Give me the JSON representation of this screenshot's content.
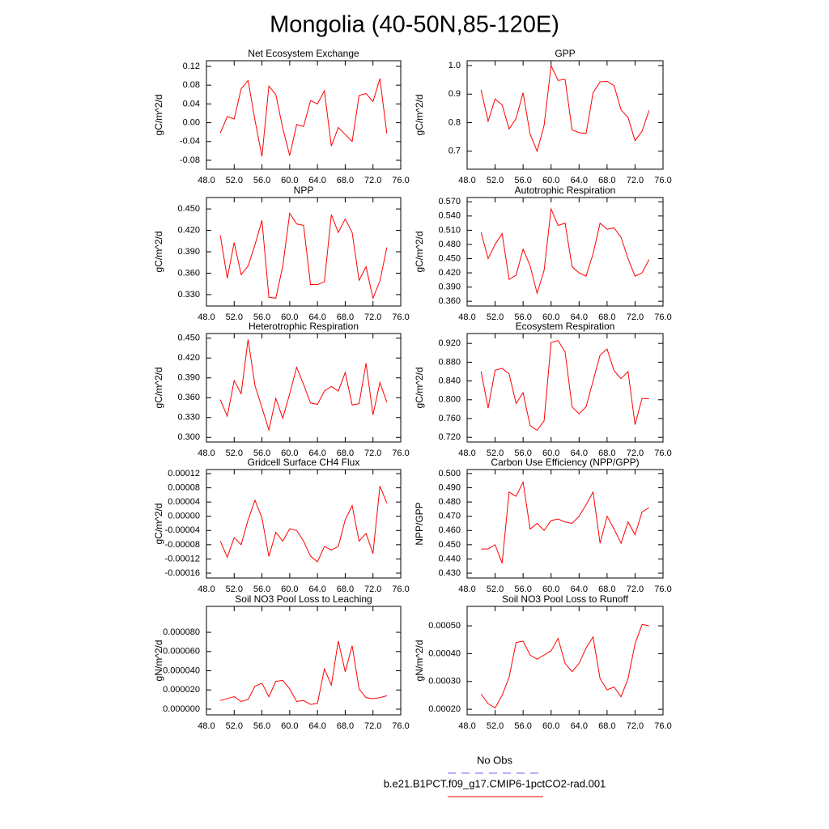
{
  "title": "Mongolia (40-50N,85-120E)",
  "legend": [
    {
      "name": "No Obs",
      "color": "#6666ff",
      "dash": true
    },
    {
      "name": "b.e21.B1PCT.f09_g17.CMIP6-1pctCO2-rad.001",
      "color": "#ff0000",
      "dash": false
    }
  ],
  "chart_data": [
    {
      "type": "line",
      "title": "Net Ecosystem Exchange",
      "y_label": "gC/m^2/d",
      "color": "#ff0000",
      "x": [
        50,
        51,
        52,
        53,
        54,
        55,
        56,
        57,
        58,
        59,
        60,
        61,
        62,
        63,
        64,
        65,
        66,
        67,
        68,
        69,
        70,
        71,
        72,
        73,
        74
      ],
      "values": [
        -0.022,
        0.013,
        0.008,
        0.072,
        0.09,
        0.005,
        -0.072,
        0.078,
        0.06,
        -0.012,
        -0.07,
        -0.004,
        -0.008,
        0.047,
        0.04,
        0.068,
        -0.05,
        -0.01,
        -0.025,
        -0.04,
        0.058,
        0.062,
        0.045,
        0.094,
        -0.023
      ],
      "xlim": [
        48,
        76
      ],
      "xticks": [
        {
          "value": 48,
          "label": "48.0"
        },
        {
          "value": 52,
          "label": "52.0"
        },
        {
          "value": 56,
          "label": "56.0"
        },
        {
          "value": 60,
          "label": "60.0"
        },
        {
          "value": 64,
          "label": "64.0"
        },
        {
          "value": 68,
          "label": "68.0"
        },
        {
          "value": 72,
          "label": "72.0"
        },
        {
          "value": 76,
          "label": "76.0"
        }
      ],
      "ylim": [
        -0.099,
        0.132
      ],
      "yticks": [
        0.12,
        0.08,
        0.04,
        {
          "value": 0,
          "label": "0.00"
        },
        -0.04,
        -0.08
      ]
    },
    {
      "type": "line",
      "title": "GPP",
      "y_label": "gC/m^2/d",
      "color": "#ff0000",
      "x": [
        50,
        51,
        52,
        53,
        54,
        55,
        56,
        57,
        58,
        59,
        60,
        61,
        62,
        63,
        64,
        65,
        66,
        67,
        68,
        69,
        70,
        71,
        72,
        73,
        74
      ],
      "values": [
        0.915,
        0.805,
        0.883,
        0.862,
        0.778,
        0.815,
        0.905,
        0.76,
        0.7,
        0.79,
        1.0,
        0.948,
        0.952,
        0.775,
        0.765,
        0.762,
        0.905,
        0.943,
        0.945,
        0.93,
        0.845,
        0.818,
        0.737,
        0.77,
        0.843
      ],
      "xlim": [
        48,
        76
      ],
      "xticks": [
        {
          "value": 48,
          "label": "48.0"
        },
        {
          "value": 52,
          "label": "52.0"
        },
        {
          "value": 56,
          "label": "56.0"
        },
        {
          "value": 60,
          "label": "60.0"
        },
        {
          "value": 64,
          "label": "64.0"
        },
        {
          "value": 68,
          "label": "68.0"
        },
        {
          "value": 72,
          "label": "72.0"
        },
        {
          "value": 76,
          "label": "76.0"
        }
      ],
      "ylim": [
        0.637,
        1.017
      ],
      "yticks": [
        {
          "value": 1,
          "label": "1.0"
        },
        0.9,
        0.8,
        0.7
      ]
    },
    {
      "type": "line",
      "title": "NPP",
      "y_label": "gC/m^2/d",
      "color": "#ff0000",
      "x": [
        50,
        51,
        52,
        53,
        54,
        55,
        56,
        57,
        58,
        59,
        60,
        61,
        62,
        63,
        64,
        65,
        66,
        67,
        68,
        69,
        70,
        71,
        72,
        73,
        74
      ],
      "values": [
        0.413,
        0.353,
        0.403,
        0.358,
        0.37,
        0.4,
        0.434,
        0.326,
        0.325,
        0.37,
        0.444,
        0.429,
        0.427,
        0.344,
        0.344,
        0.348,
        0.442,
        0.417,
        0.436,
        0.417,
        0.35,
        0.369,
        0.325,
        0.349,
        0.396
      ],
      "xlim": [
        48,
        76
      ],
      "xticks": [
        {
          "value": 48,
          "label": "48.0"
        },
        {
          "value": 52,
          "label": "52.0"
        },
        {
          "value": 56,
          "label": "56.0"
        },
        {
          "value": 60,
          "label": "60.0"
        },
        {
          "value": 64,
          "label": "64.0"
        },
        {
          "value": 68,
          "label": "68.0"
        },
        {
          "value": 72,
          "label": "72.0"
        },
        {
          "value": 76,
          "label": "76.0"
        }
      ],
      "ylim": [
        0.314,
        0.466
      ],
      "yticks": [
        {
          "value": 0.45,
          "label": "0.450"
        },
        {
          "value": 0.42,
          "label": "0.420"
        },
        {
          "value": 0.39,
          "label": "0.390"
        },
        {
          "value": 0.36,
          "label": "0.360"
        },
        {
          "value": 0.33,
          "label": "0.330"
        }
      ]
    },
    {
      "type": "line",
      "title": "Autotrophic Respiration",
      "y_label": "gC/m^2/d",
      "color": "#ff0000",
      "x": [
        50,
        51,
        52,
        53,
        54,
        55,
        56,
        57,
        58,
        59,
        60,
        61,
        62,
        63,
        64,
        65,
        66,
        67,
        68,
        69,
        70,
        71,
        72,
        73,
        74
      ],
      "values": [
        0.505,
        0.45,
        0.48,
        0.503,
        0.406,
        0.415,
        0.47,
        0.435,
        0.377,
        0.425,
        0.555,
        0.52,
        0.525,
        0.433,
        0.42,
        0.413,
        0.46,
        0.525,
        0.512,
        0.515,
        0.495,
        0.45,
        0.413,
        0.42,
        0.448
      ],
      "xlim": [
        48,
        76
      ],
      "xticks": [
        {
          "value": 48,
          "label": "48.0"
        },
        {
          "value": 52,
          "label": "52.0"
        },
        {
          "value": 56,
          "label": "56.0"
        },
        {
          "value": 60,
          "label": "60.0"
        },
        {
          "value": 64,
          "label": "64.0"
        },
        {
          "value": 68,
          "label": "68.0"
        },
        {
          "value": 72,
          "label": "72.0"
        },
        {
          "value": 76,
          "label": "76.0"
        }
      ],
      "ylim": [
        0.35,
        0.579
      ],
      "yticks": [
        {
          "value": 0.57,
          "label": "0.570"
        },
        {
          "value": 0.54,
          "label": "0.540"
        },
        {
          "value": 0.51,
          "label": "0.510"
        },
        {
          "value": 0.48,
          "label": "0.480"
        },
        {
          "value": 0.45,
          "label": "0.450"
        },
        {
          "value": 0.42,
          "label": "0.420"
        },
        {
          "value": 0.39,
          "label": "0.390"
        },
        {
          "value": 0.36,
          "label": "0.360"
        }
      ]
    },
    {
      "type": "line",
      "title": "Heterotrophic Respiration",
      "y_label": "gC/m^2/d",
      "color": "#ff0000",
      "x": [
        50,
        51,
        52,
        53,
        54,
        55,
        56,
        57,
        58,
        59,
        60,
        61,
        62,
        63,
        64,
        65,
        66,
        67,
        68,
        69,
        70,
        71,
        72,
        73,
        74
      ],
      "values": [
        0.357,
        0.332,
        0.386,
        0.366,
        0.448,
        0.378,
        0.345,
        0.311,
        0.359,
        0.329,
        0.366,
        0.406,
        0.38,
        0.352,
        0.35,
        0.37,
        0.377,
        0.37,
        0.398,
        0.349,
        0.351,
        0.412,
        0.334,
        0.383,
        0.353
      ],
      "xlim": [
        48,
        76
      ],
      "xticks": [
        {
          "value": 48,
          "label": "48.0"
        },
        {
          "value": 52,
          "label": "52.0"
        },
        {
          "value": 56,
          "label": "56.0"
        },
        {
          "value": 60,
          "label": "60.0"
        },
        {
          "value": 64,
          "label": "64.0"
        },
        {
          "value": 68,
          "label": "68.0"
        },
        {
          "value": 72,
          "label": "72.0"
        },
        {
          "value": 76,
          "label": "76.0"
        }
      ],
      "ylim": [
        0.293,
        0.457
      ],
      "yticks": [
        {
          "value": 0.45,
          "label": "0.450"
        },
        {
          "value": 0.42,
          "label": "0.420"
        },
        {
          "value": 0.39,
          "label": "0.390"
        },
        {
          "value": 0.36,
          "label": "0.360"
        },
        {
          "value": 0.33,
          "label": "0.330"
        },
        {
          "value": 0.3,
          "label": "0.300"
        }
      ]
    },
    {
      "type": "line",
      "title": "Ecosystem Respiration",
      "y_label": "gC/m^2/d",
      "color": "#ff0000",
      "x": [
        50,
        51,
        52,
        53,
        54,
        55,
        56,
        57,
        58,
        59,
        60,
        61,
        62,
        63,
        64,
        65,
        66,
        67,
        68,
        69,
        70,
        71,
        72,
        73,
        74
      ],
      "values": [
        0.86,
        0.782,
        0.863,
        0.867,
        0.855,
        0.792,
        0.815,
        0.745,
        0.735,
        0.755,
        0.922,
        0.926,
        0.902,
        0.785,
        0.77,
        0.785,
        0.84,
        0.895,
        0.908,
        0.862,
        0.845,
        0.86,
        0.747,
        0.803,
        0.802
      ],
      "xlim": [
        48,
        76
      ],
      "xticks": [
        {
          "value": 48,
          "label": "48.0"
        },
        {
          "value": 52,
          "label": "52.0"
        },
        {
          "value": 56,
          "label": "56.0"
        },
        {
          "value": 60,
          "label": "60.0"
        },
        {
          "value": 64,
          "label": "64.0"
        },
        {
          "value": 68,
          "label": "68.0"
        },
        {
          "value": 72,
          "label": "72.0"
        },
        {
          "value": 76,
          "label": "76.0"
        }
      ],
      "ylim": [
        0.71,
        0.941
      ],
      "yticks": [
        {
          "value": 0.92,
          "label": "0.920"
        },
        {
          "value": 0.88,
          "label": "0.880"
        },
        {
          "value": 0.84,
          "label": "0.840"
        },
        {
          "value": 0.8,
          "label": "0.800"
        },
        {
          "value": 0.76,
          "label": "0.760"
        },
        {
          "value": 0.72,
          "label": "0.720"
        }
      ]
    },
    {
      "type": "line",
      "title": "Gridcell Surface CH4 Flux",
      "y_label": "gC/m^2/d",
      "color": "#ff0000",
      "x": [
        50,
        51,
        52,
        53,
        54,
        55,
        56,
        57,
        58,
        59,
        60,
        61,
        62,
        63,
        64,
        65,
        66,
        67,
        68,
        69,
        70,
        71,
        72,
        73,
        74
      ],
      "values": [
        -7e-05,
        -0.000115,
        -6e-05,
        -8e-05,
        -1e-05,
        4.5e-05,
        -5e-06,
        -0.000113,
        -4.5e-05,
        -7e-05,
        -3.5e-05,
        -4e-05,
        -7e-05,
        -0.000112,
        -0.000128,
        -8.5e-05,
        -9.5e-05,
        -8.5e-05,
        -1e-05,
        3e-05,
        -7e-05,
        -4.8e-05,
        -0.000105,
        8.5e-05,
        3.7e-05
      ],
      "xlim": [
        48,
        76
      ],
      "xticks": [
        {
          "value": 48,
          "label": "48.0"
        },
        {
          "value": 52,
          "label": "52.0"
        },
        {
          "value": 56,
          "label": "56.0"
        },
        {
          "value": 60,
          "label": "60.0"
        },
        {
          "value": 64,
          "label": "64.0"
        },
        {
          "value": 68,
          "label": "68.0"
        },
        {
          "value": 72,
          "label": "72.0"
        },
        {
          "value": 76,
          "label": "76.0"
        }
      ],
      "ylim": [
        -0.0001737,
        0.0001314
      ],
      "yticks": [
        0.00012,
        8e-05,
        4e-05,
        {
          "value": 0,
          "label": "0.00000"
        },
        -4e-05,
        -8e-05,
        -0.00012,
        -0.00016
      ]
    },
    {
      "type": "line",
      "title": "Carbon Use Efficiency (NPP/GPP)",
      "y_label": "NPP/GPP",
      "color": "#ff0000",
      "x": [
        50,
        51,
        52,
        53,
        54,
        55,
        56,
        57,
        58,
        59,
        60,
        61,
        62,
        63,
        64,
        65,
        66,
        67,
        68,
        69,
        70,
        71,
        72,
        73,
        74
      ],
      "values": [
        0.447,
        0.447,
        0.45,
        0.437,
        0.487,
        0.484,
        0.494,
        0.461,
        0.465,
        0.46,
        0.467,
        0.468,
        0.466,
        0.465,
        0.47,
        0.478,
        0.487,
        0.451,
        0.47,
        0.461,
        0.451,
        0.466,
        0.457,
        0.473,
        0.476
      ],
      "xlim": [
        48,
        76
      ],
      "xticks": [
        {
          "value": 48,
          "label": "48.0"
        },
        {
          "value": 52,
          "label": "52.0"
        },
        {
          "value": 56,
          "label": "56.0"
        },
        {
          "value": 60,
          "label": "60.0"
        },
        {
          "value": 64,
          "label": "64.0"
        },
        {
          "value": 68,
          "label": "68.0"
        },
        {
          "value": 72,
          "label": "72.0"
        },
        {
          "value": 76,
          "label": "76.0"
        }
      ],
      "ylim": [
        0.4266,
        0.5028
      ],
      "yticks": [
        {
          "value": 0.5,
          "label": "0.500"
        },
        {
          "value": 0.49,
          "label": "0.490"
        },
        {
          "value": 0.48,
          "label": "0.480"
        },
        {
          "value": 0.47,
          "label": "0.470"
        },
        {
          "value": 0.46,
          "label": "0.460"
        },
        {
          "value": 0.45,
          "label": "0.450"
        },
        {
          "value": 0.44,
          "label": "0.440"
        },
        {
          "value": 0.43,
          "label": "0.430"
        }
      ]
    },
    {
      "type": "line",
      "title": "Soil NO3 Pool Loss to Leaching",
      "y_label": "gN/m^2/d",
      "color": "#ff0000",
      "x": [
        50,
        51,
        52,
        53,
        54,
        55,
        56,
        57,
        58,
        59,
        60,
        61,
        62,
        63,
        64,
        65,
        66,
        67,
        68,
        69,
        70,
        71,
        72,
        73,
        74
      ],
      "values": [
        9e-06,
        1.1e-05,
        1.3e-05,
        8e-06,
        1e-05,
        2.4e-05,
        2.7e-05,
        1.3e-05,
        2.9e-05,
        3e-05,
        2.1e-05,
        8e-06,
        9e-06,
        5e-06,
        6e-06,
        4.2e-05,
        2.5e-05,
        7.1e-05,
        3.9e-05,
        6.6e-05,
        2.1e-05,
        1.2e-05,
        1.1e-05,
        1.2e-05,
        1.4e-05
      ],
      "xlim": [
        48,
        76
      ],
      "xticks": [
        {
          "value": 48,
          "label": "48.0"
        },
        {
          "value": 52,
          "label": "52.0"
        },
        {
          "value": 56,
          "label": "56.0"
        },
        {
          "value": 60,
          "label": "60.0"
        },
        {
          "value": 64,
          "label": "64.0"
        },
        {
          "value": 68,
          "label": "68.0"
        },
        {
          "value": 72,
          "label": "72.0"
        },
        {
          "value": 76,
          "label": "76.0"
        }
      ],
      "ylim": [
        -5.9e-06,
        0.000107
      ],
      "yticks": [
        {
          "value": 8e-05,
          "label": "0.000080"
        },
        {
          "value": 6e-05,
          "label": "0.000060"
        },
        {
          "value": 4e-05,
          "label": "0.000040"
        },
        {
          "value": 2e-05,
          "label": "0.000020"
        },
        {
          "value": 0,
          "label": "0.000000"
        }
      ]
    },
    {
      "type": "line",
      "title": "Soil NO3 Pool Loss to Runoff",
      "y_label": "gN/m^2/d",
      "color": "#ff0000",
      "x": [
        50,
        51,
        52,
        53,
        54,
        55,
        56,
        57,
        58,
        59,
        60,
        61,
        62,
        63,
        64,
        65,
        66,
        67,
        68,
        69,
        70,
        71,
        72,
        73,
        74
      ],
      "values": [
        0.000255,
        0.00022,
        0.000205,
        0.00025,
        0.000315,
        0.00044,
        0.000445,
        0.000395,
        0.00038,
        0.000395,
        0.00041,
        0.000455,
        0.000365,
        0.000335,
        0.000365,
        0.00042,
        0.00046,
        0.00031,
        0.00027,
        0.00028,
        0.000245,
        0.00031,
        0.000435,
        0.000505,
        0.0005
      ],
      "xlim": [
        48,
        76
      ],
      "xticks": [
        {
          "value": 48,
          "label": "48.0"
        },
        {
          "value": 52,
          "label": "52.0"
        },
        {
          "value": 56,
          "label": "56.0"
        },
        {
          "value": 60,
          "label": "60.0"
        },
        {
          "value": 64,
          "label": "64.0"
        },
        {
          "value": 68,
          "label": "68.0"
        },
        {
          "value": 72,
          "label": "72.0"
        },
        {
          "value": 76,
          "label": "76.0"
        }
      ],
      "ylim": [
        0.00018,
        0.00057
      ],
      "yticks": [
        {
          "value": 0.0005,
          "label": "0.00050"
        },
        {
          "value": 0.0004,
          "label": "0.00040"
        },
        {
          "value": 0.0003,
          "label": "0.00030"
        },
        {
          "value": 0.0002,
          "label": "0.00020"
        }
      ]
    }
  ]
}
